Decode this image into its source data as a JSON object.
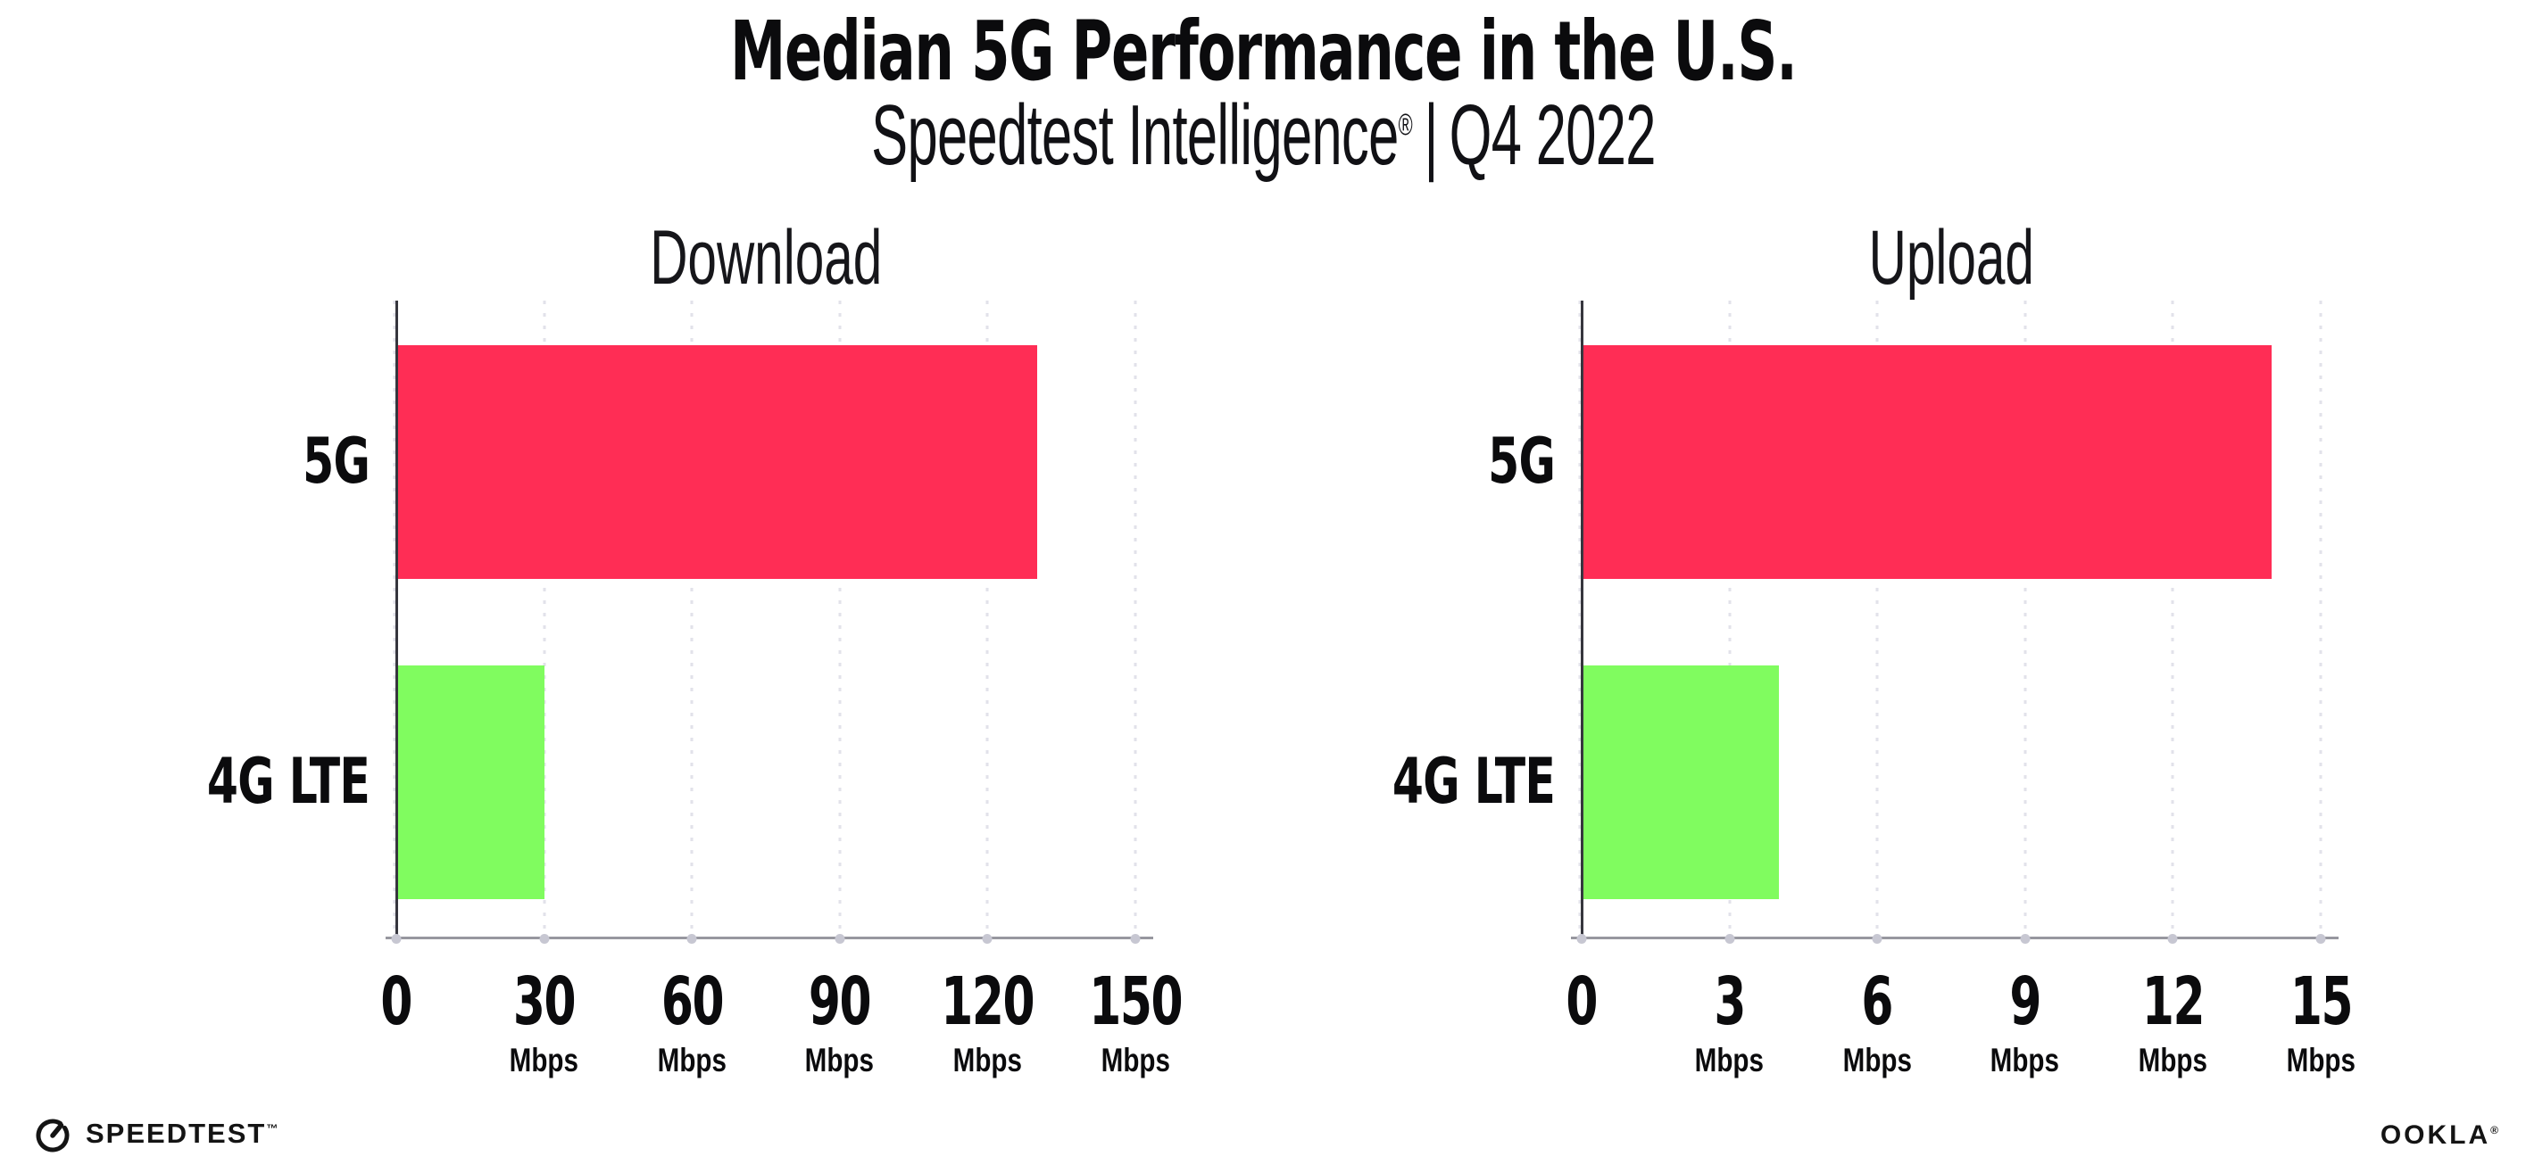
{
  "header": {
    "title": "Median 5G Performance in the U.S.",
    "subtitle_brand": "Speedtest Intelligence",
    "subtitle_reg": "®",
    "subtitle_sep": "|",
    "subtitle_period": "Q4 2022"
  },
  "chart_data": [
    {
      "type": "bar",
      "orientation": "horizontal",
      "title": "Download",
      "categories": [
        "5G",
        "4G LTE"
      ],
      "values": [
        130,
        30
      ],
      "unit": "Mbps",
      "xlim": [
        0,
        150
      ],
      "xticks": [
        0,
        30,
        60,
        90,
        120,
        150
      ],
      "xtick_labels": [
        "0",
        "30",
        "60",
        "90",
        "120",
        "150"
      ],
      "bar_colors": [
        "#FF2D55",
        "#80FC5F"
      ],
      "grid": "dotted-vertical-at-ticks",
      "legend": "none"
    },
    {
      "type": "bar",
      "orientation": "horizontal",
      "title": "Upload",
      "categories": [
        "5G",
        "4G LTE"
      ],
      "values": [
        14,
        4
      ],
      "unit": "Mbps",
      "xlim": [
        0,
        15
      ],
      "xticks": [
        0,
        3,
        6,
        9,
        12,
        15
      ],
      "xtick_labels": [
        "0",
        "3",
        "6",
        "9",
        "12",
        "15"
      ],
      "bar_colors": [
        "#FF2D55",
        "#80FC5F"
      ],
      "grid": "dotted-vertical-at-ticks",
      "legend": "none"
    }
  ],
  "footer": {
    "speedtest_wordmark": "SPEEDTEST",
    "speedtest_tm": "™",
    "ookla_wordmark": "OOKLA",
    "ookla_reg": "®"
  },
  "colors": {
    "bar_5g": "#FF2D55",
    "bar_4g_lte": "#80FC5F",
    "axis": "#36363e",
    "baseline": "#97979f",
    "gridline": "#e2e2ea",
    "text": "#0b0b0d",
    "background": "#ffffff"
  }
}
